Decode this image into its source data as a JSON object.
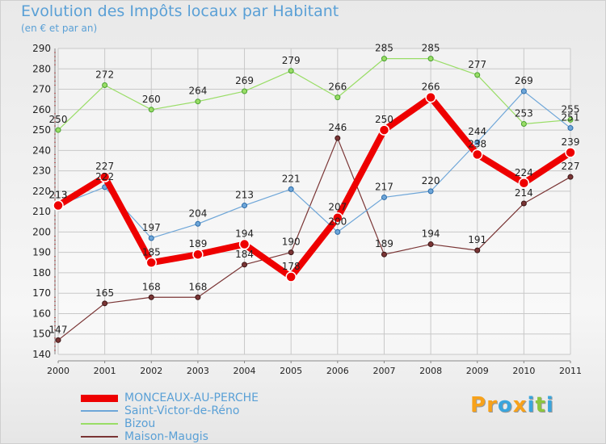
{
  "header": {
    "title": "Evolution des Impôts locaux par Habitant",
    "subtitle": "(en € et par an)"
  },
  "logo": {
    "text": "Proxiti",
    "letter_colors": [
      "#f7a21b",
      "#f7a21b",
      "#3aa5dd",
      "#f7a21b",
      "#3aa5dd",
      "#8cc63f",
      "#3aa5dd"
    ]
  },
  "chart_data": {
    "type": "line",
    "title": "Evolution des Impôts locaux par Habitant",
    "subtitle": "(en € et par an)",
    "x": [
      "2000",
      "2001",
      "2002",
      "2003",
      "2004",
      "2005",
      "2006",
      "2007",
      "2008",
      "2009",
      "2010",
      "2011"
    ],
    "yticks": [
      140,
      150,
      160,
      170,
      180,
      190,
      200,
      210,
      220,
      230,
      240,
      250,
      260,
      270,
      280,
      290
    ],
    "ylim": [
      140,
      290
    ],
    "grid": true,
    "legend_position": "bottom-left",
    "series": [
      {
        "name": "MONCEAUX-AU-PERCHE",
        "color": "#ee0000",
        "values": [
          213,
          227,
          185,
          189,
          194,
          178,
          207,
          250,
          266,
          238,
          224,
          239
        ],
        "labels": [
          "213",
          "227",
          "185",
          "189",
          "194",
          "178",
          "207",
          "250",
          "266",
          "238",
          "224",
          "239"
        ]
      },
      {
        "name": "Saint-Victor-de-Réno",
        "color": "#6ea6d8",
        "values": [
          213,
          222,
          197,
          204,
          213,
          221,
          200,
          217,
          220,
          244,
          269,
          251
        ],
        "labels": [
          "213",
          "222",
          "197",
          "204",
          "213",
          "221",
          "200",
          "217",
          "220",
          "244",
          "269",
          "251"
        ]
      },
      {
        "name": "Bizou",
        "color": "#99dd66",
        "values": [
          250,
          272,
          260,
          264,
          269,
          279,
          266,
          285,
          285,
          277,
          253,
          255
        ],
        "labels": [
          "250",
          "272",
          "260",
          "264",
          "269",
          "279",
          "266",
          "285",
          "285",
          "277",
          "253",
          "255"
        ]
      },
      {
        "name": "Maison-Maugis",
        "color": "#7a3535",
        "values": [
          147,
          165,
          168,
          168,
          184,
          190,
          246,
          189,
          194,
          191,
          214,
          227
        ],
        "labels": [
          "147",
          "165",
          "168",
          "168",
          "184",
          "190",
          "246",
          "189",
          "194",
          "191",
          "214",
          "227"
        ]
      }
    ]
  }
}
